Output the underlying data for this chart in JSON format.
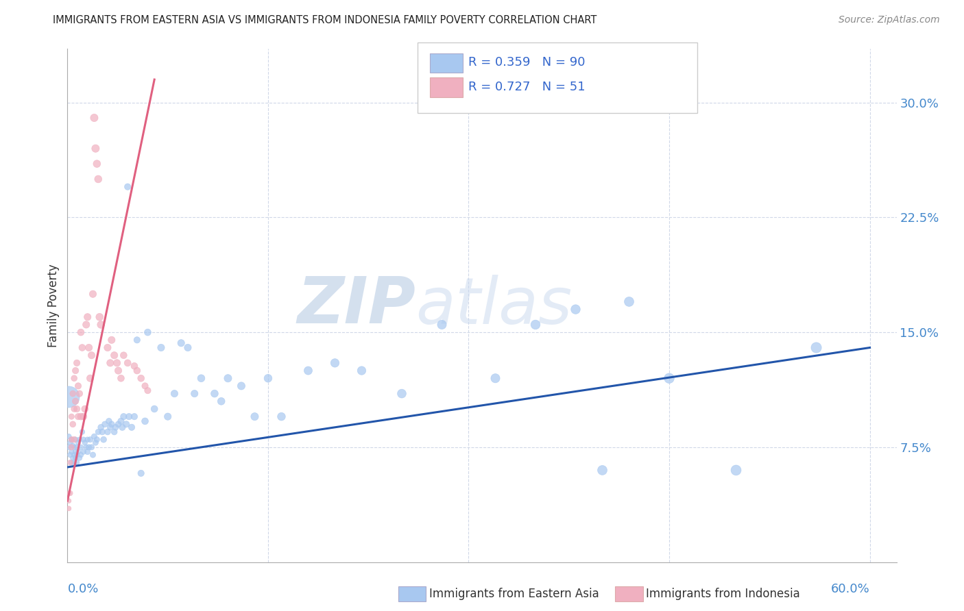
{
  "title": "IMMIGRANTS FROM EASTERN ASIA VS IMMIGRANTS FROM INDONESIA FAMILY POVERTY CORRELATION CHART",
  "source": "Source: ZipAtlas.com",
  "ylabel": "Family Poverty",
  "y_ticks": [
    0.075,
    0.15,
    0.225,
    0.3
  ],
  "y_tick_labels": [
    "7.5%",
    "15.0%",
    "22.5%",
    "30.0%"
  ],
  "watermark_ZIP": "ZIP",
  "watermark_atlas": "atlas",
  "legend_blue_R": "R = 0.359",
  "legend_blue_N": "N = 90",
  "legend_pink_R": "R = 0.727",
  "legend_pink_N": "N = 51",
  "blue_color": "#a8c8f0",
  "pink_color": "#f0b0c0",
  "trend_blue": "#2255aa",
  "trend_pink": "#e06080",
  "blue_scatter_x": [
    0.001,
    0.001,
    0.002,
    0.002,
    0.003,
    0.003,
    0.003,
    0.004,
    0.004,
    0.005,
    0.005,
    0.005,
    0.006,
    0.006,
    0.006,
    0.007,
    0.007,
    0.007,
    0.008,
    0.008,
    0.009,
    0.009,
    0.01,
    0.01,
    0.011,
    0.012,
    0.012,
    0.013,
    0.014,
    0.015,
    0.015,
    0.016,
    0.017,
    0.018,
    0.019,
    0.02,
    0.021,
    0.022,
    0.023,
    0.025,
    0.026,
    0.027,
    0.028,
    0.03,
    0.031,
    0.032,
    0.033,
    0.035,
    0.036,
    0.038,
    0.04,
    0.041,
    0.042,
    0.044,
    0.045,
    0.046,
    0.048,
    0.05,
    0.052,
    0.055,
    0.058,
    0.06,
    0.065,
    0.07,
    0.075,
    0.08,
    0.085,
    0.09,
    0.095,
    0.1,
    0.11,
    0.115,
    0.12,
    0.13,
    0.14,
    0.15,
    0.16,
    0.18,
    0.2,
    0.22,
    0.25,
    0.28,
    0.32,
    0.35,
    0.38,
    0.4,
    0.42,
    0.45,
    0.5,
    0.56
  ],
  "blue_scatter_y": [
    0.075,
    0.082,
    0.07,
    0.078,
    0.065,
    0.072,
    0.08,
    0.068,
    0.076,
    0.07,
    0.065,
    0.075,
    0.08,
    0.068,
    0.072,
    0.07,
    0.075,
    0.065,
    0.078,
    0.072,
    0.08,
    0.068,
    0.075,
    0.07,
    0.085,
    0.08,
    0.072,
    0.078,
    0.075,
    0.08,
    0.072,
    0.075,
    0.08,
    0.075,
    0.07,
    0.082,
    0.078,
    0.08,
    0.085,
    0.088,
    0.085,
    0.08,
    0.09,
    0.085,
    0.092,
    0.088,
    0.09,
    0.085,
    0.088,
    0.09,
    0.092,
    0.088,
    0.095,
    0.09,
    0.245,
    0.095,
    0.088,
    0.095,
    0.145,
    0.058,
    0.092,
    0.15,
    0.1,
    0.14,
    0.095,
    0.11,
    0.143,
    0.14,
    0.11,
    0.12,
    0.11,
    0.105,
    0.12,
    0.115,
    0.095,
    0.12,
    0.095,
    0.125,
    0.13,
    0.125,
    0.11,
    0.155,
    0.12,
    0.155,
    0.165,
    0.06,
    0.17,
    0.12,
    0.06,
    0.14
  ],
  "blue_scatter_sizes": [
    30,
    30,
    30,
    30,
    30,
    30,
    30,
    30,
    30,
    30,
    30,
    30,
    30,
    30,
    30,
    30,
    30,
    30,
    30,
    30,
    30,
    30,
    30,
    30,
    30,
    30,
    30,
    30,
    30,
    30,
    35,
    35,
    35,
    35,
    35,
    35,
    35,
    35,
    35,
    40,
    40,
    40,
    40,
    40,
    40,
    40,
    40,
    40,
    40,
    40,
    45,
    45,
    45,
    45,
    45,
    45,
    45,
    45,
    45,
    45,
    50,
    50,
    50,
    55,
    55,
    55,
    55,
    55,
    55,
    60,
    60,
    60,
    65,
    65,
    65,
    70,
    70,
    75,
    80,
    80,
    85,
    90,
    90,
    95,
    95,
    100,
    100,
    110,
    115,
    120
  ],
  "blue_big_x": [
    0.001
  ],
  "blue_big_y": [
    0.108
  ],
  "blue_big_s": [
    500
  ],
  "pink_scatter_x": [
    0.001,
    0.001,
    0.002,
    0.002,
    0.003,
    0.003,
    0.003,
    0.004,
    0.004,
    0.005,
    0.005,
    0.005,
    0.006,
    0.006,
    0.007,
    0.007,
    0.008,
    0.008,
    0.009,
    0.01,
    0.01,
    0.011,
    0.012,
    0.013,
    0.014,
    0.015,
    0.016,
    0.017,
    0.018,
    0.019,
    0.02,
    0.021,
    0.022,
    0.023,
    0.024,
    0.025,
    0.03,
    0.032,
    0.033,
    0.035,
    0.037,
    0.038,
    0.04,
    0.042,
    0.045,
    0.05,
    0.052,
    0.055,
    0.058,
    0.06,
    0.001
  ],
  "pink_scatter_y": [
    0.045,
    0.035,
    0.065,
    0.045,
    0.095,
    0.08,
    0.075,
    0.11,
    0.09,
    0.12,
    0.1,
    0.08,
    0.125,
    0.105,
    0.13,
    0.1,
    0.115,
    0.095,
    0.11,
    0.15,
    0.095,
    0.14,
    0.095,
    0.1,
    0.155,
    0.16,
    0.14,
    0.12,
    0.135,
    0.175,
    0.29,
    0.27,
    0.26,
    0.25,
    0.16,
    0.155,
    0.14,
    0.13,
    0.145,
    0.135,
    0.13,
    0.125,
    0.12,
    0.135,
    0.13,
    0.128,
    0.125,
    0.12,
    0.115,
    0.112,
    0.04
  ],
  "pink_scatter_sizes": [
    25,
    25,
    30,
    30,
    35,
    35,
    35,
    40,
    40,
    40,
    40,
    40,
    45,
    45,
    45,
    45,
    45,
    45,
    45,
    50,
    50,
    50,
    50,
    50,
    55,
    55,
    55,
    55,
    55,
    55,
    65,
    65,
    60,
    60,
    60,
    60,
    55,
    55,
    55,
    55,
    55,
    55,
    50,
    50,
    50,
    50,
    50,
    50,
    45,
    45,
    25
  ],
  "blue_trend_x": [
    0.0,
    0.6
  ],
  "blue_trend_y": [
    0.062,
    0.14
  ],
  "pink_trend_x": [
    0.0,
    0.065
  ],
  "pink_trend_y": [
    0.04,
    0.315
  ],
  "xlim": [
    0.0,
    0.62
  ],
  "ylim": [
    0.0,
    0.335
  ],
  "figsize": [
    14.06,
    8.92
  ],
  "dpi": 100
}
